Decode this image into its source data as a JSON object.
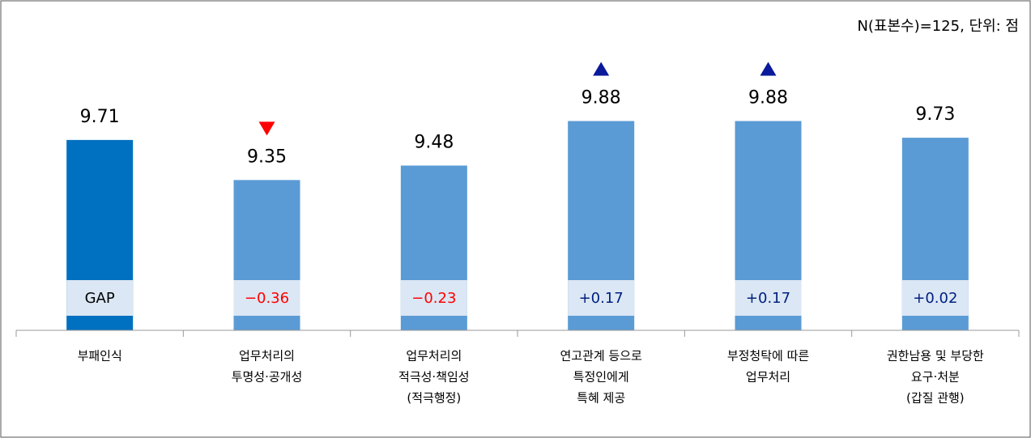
{
  "chart_data": {
    "type": "bar",
    "note": "N(표본수)=125, 단위: 점",
    "categories": [
      [
        "부패인식"
      ],
      [
        "업무처리의",
        "투명성·공개성"
      ],
      [
        "업무처리의",
        "적극성·책임성",
        "(적극행정)"
      ],
      [
        "연고관계 등으로",
        "특정인에게",
        "특혜 제공"
      ],
      [
        "부정청탁에 따른",
        "업무처리"
      ],
      [
        "권한남용 및 부당한",
        "요구·처분",
        "(갑질 관행)"
      ]
    ],
    "values": [
      9.71,
      9.35,
      9.48,
      9.88,
      9.88,
      9.73
    ],
    "colors": [
      "#0070c0",
      "#5b9bd5",
      "#5b9bd5",
      "#5b9bd5",
      "#5b9bd5",
      "#5b9bd5"
    ],
    "gap_labels": [
      "GAP",
      "−0.36",
      "−0.23",
      "+0.17",
      "+0.17",
      "+0.02"
    ],
    "gap_colors": [
      "#000000",
      "#ff0000",
      "#ff0000",
      "#002080",
      "#002080",
      "#002080"
    ],
    "markers": [
      null,
      "down",
      null,
      "up",
      "up",
      null
    ],
    "marker_colors": {
      "up": "#0a1a9a",
      "down": "#ff0000"
    },
    "ylim": [
      8,
      10
    ]
  }
}
